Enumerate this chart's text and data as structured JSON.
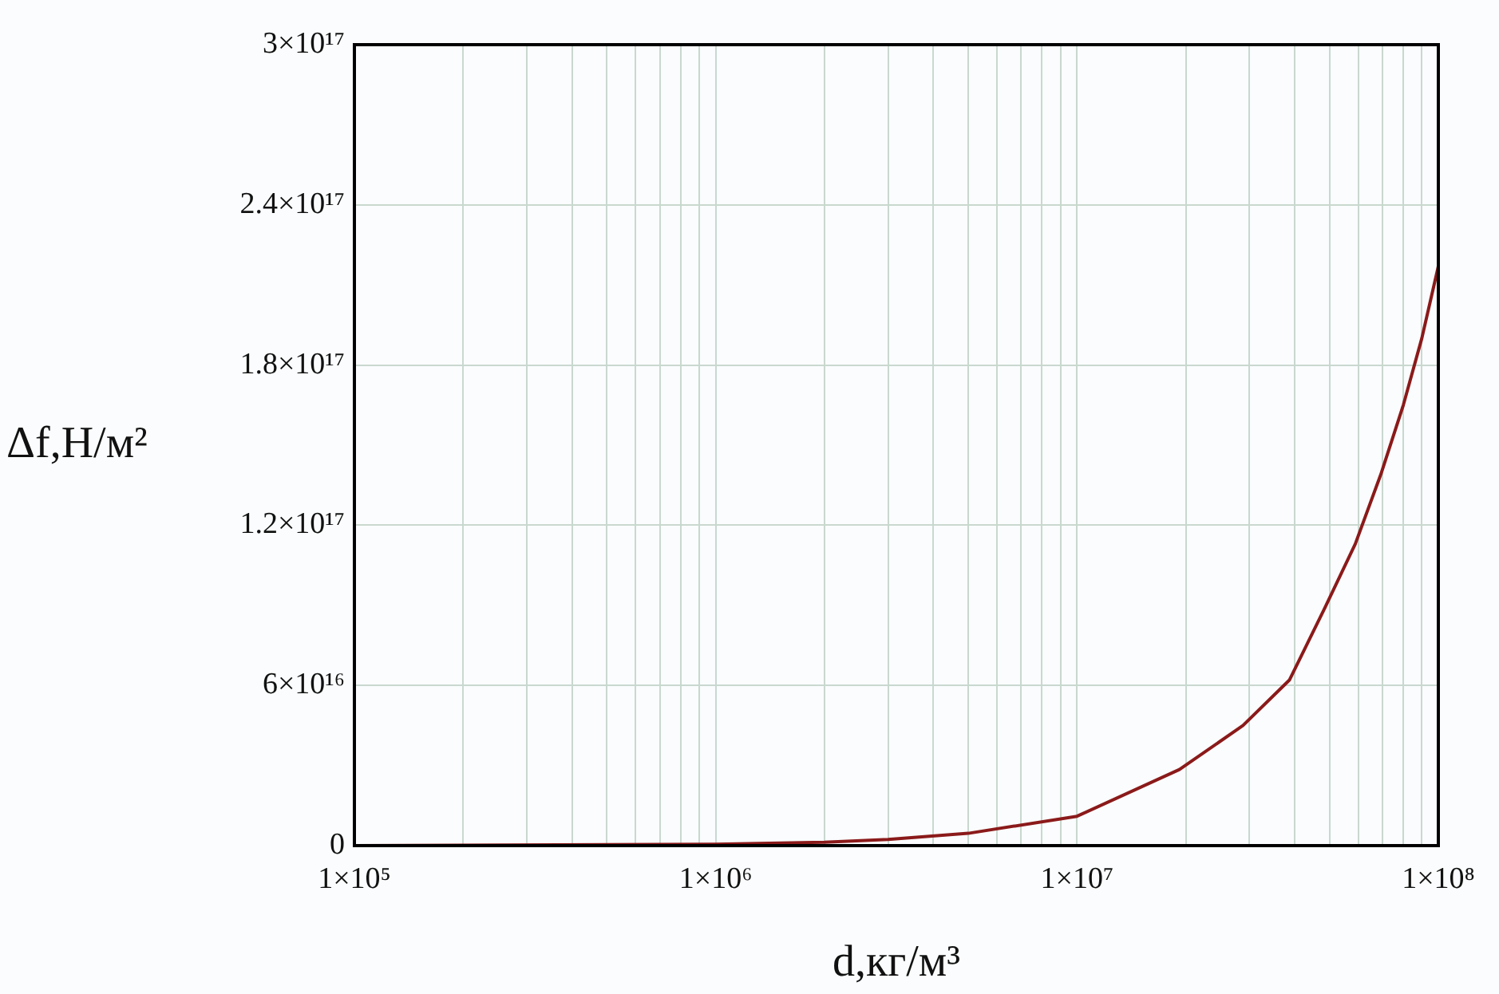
{
  "chart_data": {
    "type": "line",
    "xlabel": "d,кг/м³",
    "ylabel": "Δf,Н/м²",
    "x": [
      100000,
      1000000,
      2000000,
      3000000,
      5000000,
      10000000,
      19200000,
      28800000,
      38700000,
      48500000,
      58900000,
      69300000,
      80000000,
      90000000,
      100000000
    ],
    "series": [
      {
        "color": "#8b1a1a",
        "values": [
          0,
          500000000000000.0,
          1300000000000000.0,
          2300000000000000.0,
          4600000000000000.0,
          1.1e+16,
          2.85e+16,
          4.5e+16,
          6.2e+16,
          8.9e+16,
          1.13e+17,
          1.39e+17,
          1.65e+17,
          1.9e+17,
          2.17e+17
        ]
      }
    ],
    "log": "x",
    "xlim": [
      100000,
      100000000
    ],
    "ylim": [
      0,
      3e+17
    ],
    "xticks": [
      {
        "value": 100000,
        "label": "1×10⁵"
      },
      {
        "value": 200000,
        "label": null
      },
      {
        "value": 300000,
        "label": null
      },
      {
        "value": 400000,
        "label": null
      },
      {
        "value": 500000,
        "label": null
      },
      {
        "value": 600000,
        "label": null
      },
      {
        "value": 700000,
        "label": null
      },
      {
        "value": 800000,
        "label": null
      },
      {
        "value": 900000,
        "label": null
      },
      {
        "value": 1000000,
        "label": "1×10⁶"
      },
      {
        "value": 2000000,
        "label": null
      },
      {
        "value": 3000000,
        "label": null
      },
      {
        "value": 4000000,
        "label": null
      },
      {
        "value": 5000000,
        "label": null
      },
      {
        "value": 6000000,
        "label": null
      },
      {
        "value": 7000000,
        "label": null
      },
      {
        "value": 8000000,
        "label": null
      },
      {
        "value": 9000000,
        "label": null
      },
      {
        "value": 10000000,
        "label": "1×10⁷"
      },
      {
        "value": 20000000,
        "label": null
      },
      {
        "value": 30000000,
        "label": null
      },
      {
        "value": 40000000,
        "label": null
      },
      {
        "value": 50000000,
        "label": null
      },
      {
        "value": 60000000,
        "label": null
      },
      {
        "value": 70000000,
        "label": null
      },
      {
        "value": 80000000,
        "label": null
      },
      {
        "value": 90000000,
        "label": null
      },
      {
        "value": 100000000,
        "label": "1×10⁸"
      }
    ],
    "yticks": [
      0,
      {
        "value": 6e+16,
        "label": "6×10¹⁶"
      },
      {
        "value": 1.2e+17,
        "label": "1.2×10¹⁷"
      },
      {
        "value": 1.8e+17,
        "label": "1.8×10¹⁷"
      },
      {
        "value": 2.4e+17,
        "label": "2.4×10¹⁷"
      },
      {
        "value": 3e+17,
        "label": "3×10¹⁷"
      }
    ],
    "grid": true,
    "legend": false,
    "marker": "none",
    "line_style": "solid"
  }
}
